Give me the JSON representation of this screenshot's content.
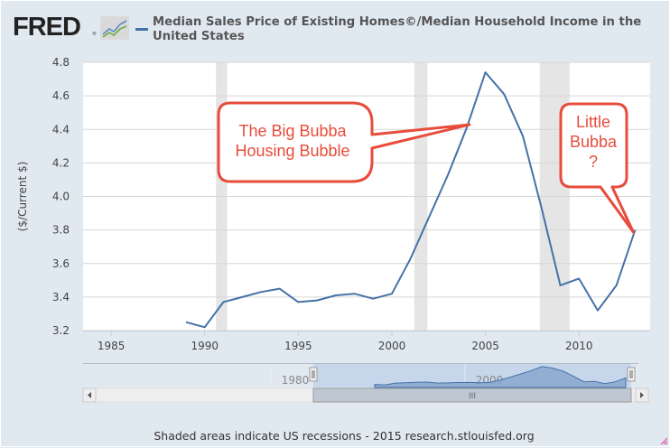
{
  "header": {
    "logo_text": "FRED",
    "logo_registered": "®",
    "logo_icon": "line-chart-icon",
    "series_title": "Median Sales Price of Existing Homes©/Median Household Income in the United States"
  },
  "footer": {
    "note": "Shaded areas indicate US recessions - 2015 research.stlouisfed.org"
  },
  "colors": {
    "series": "#4572a7",
    "recession": "#e5e5e5",
    "callout": "#e74c3c",
    "background": "#e1e9f0",
    "navigator_mask": "#c6d7ec",
    "navigator_area": "#89a7cf"
  },
  "navigator": {
    "labels": [
      "1980",
      "2000"
    ],
    "scrollbar_grip": "III",
    "left_arrow": "◂",
    "right_arrow": "▸"
  },
  "callouts": [
    {
      "lines": [
        "The Big Bubba",
        "Housing Bubble"
      ],
      "points_to_year": 2004
    },
    {
      "lines": [
        "Little",
        "Bubba",
        "?"
      ],
      "points_to_year": 2013
    }
  ],
  "chart_data": {
    "type": "line",
    "title": "Median Sales Price of Existing Homes©/Median Household Income in the United States",
    "xlabel": "",
    "ylabel": "($/Current $)",
    "xlim": [
      1983.5,
      2013.8
    ],
    "ylim": [
      3.2,
      4.8
    ],
    "x_ticks": [
      "1985",
      "1990",
      "1995",
      "2000",
      "2005",
      "2010"
    ],
    "y_ticks": [
      "3.2",
      "3.4",
      "3.6",
      "3.8",
      "4.0",
      "4.2",
      "4.4",
      "4.6",
      "4.8"
    ],
    "grid": true,
    "legend": "top-left",
    "recessions": [
      [
        1990.6,
        1991.2
      ],
      [
        2001.2,
        2001.9
      ],
      [
        2007.9,
        2009.5
      ]
    ],
    "series": [
      {
        "name": "Median Sales Price of Existing Homes©/Median Household Income in the United States",
        "x": [
          1989,
          1990,
          1991,
          1992,
          1993,
          1994,
          1995,
          1996,
          1997,
          1998,
          1999,
          2000,
          2001,
          2002,
          2003,
          2004,
          2005,
          2006,
          2007,
          2008,
          2009,
          2010,
          2011,
          2012,
          2013
        ],
        "values": [
          3.25,
          3.22,
          3.37,
          3.4,
          3.43,
          3.45,
          3.37,
          3.38,
          3.41,
          3.42,
          3.39,
          3.42,
          3.63,
          3.88,
          4.13,
          4.41,
          4.74,
          4.61,
          4.36,
          3.93,
          3.47,
          3.51,
          3.32,
          3.47,
          3.8
        ]
      }
    ]
  }
}
